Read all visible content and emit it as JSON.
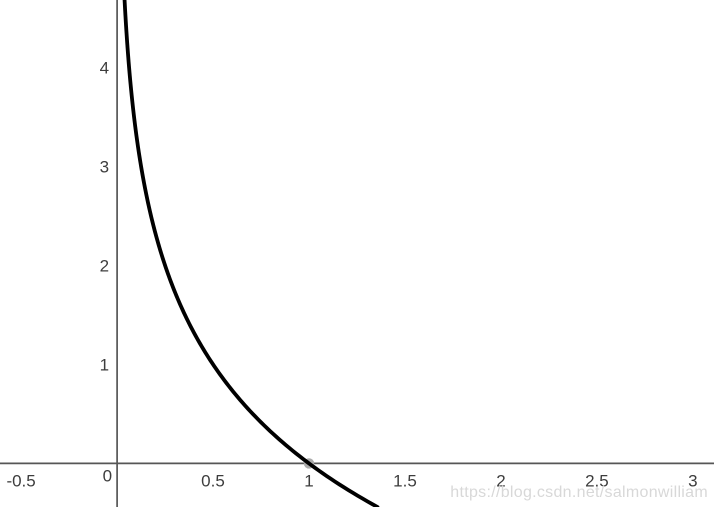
{
  "watermark": "https://blog.csdn.net/salmonwilliam",
  "colors": {
    "background": "#ffffff",
    "axis": "#565656",
    "tick_label": "#3d3d3d",
    "curve": "#000000",
    "point": "#ababab",
    "watermark": "#d8d8d8"
  },
  "chart_data": {
    "type": "line",
    "title": "",
    "xlabel": "",
    "ylabel": "",
    "expression": "y = -log2(x)",
    "function_id": "neg_log2",
    "xlim": [
      -0.61,
      3.11
    ],
    "ylim": [
      -0.44,
      4.68
    ],
    "grid": false,
    "legend_position": "none",
    "x_ticks": [
      {
        "v": -0.5,
        "label": "-0.5"
      },
      {
        "v": 0.5,
        "label": "0.5"
      },
      {
        "v": 1,
        "label": "1"
      },
      {
        "v": 1.5,
        "label": "1.5"
      },
      {
        "v": 2,
        "label": "2"
      },
      {
        "v": 2.5,
        "label": "2.5"
      },
      {
        "v": 3,
        "label": "3"
      }
    ],
    "y_ticks": [
      {
        "v": 1,
        "label": "1"
      },
      {
        "v": 2,
        "label": "2"
      },
      {
        "v": 3,
        "label": "3"
      },
      {
        "v": 4,
        "label": "4"
      }
    ],
    "origin_label": "0",
    "marked_point": {
      "x": 1,
      "y": 0
    },
    "sample_points": [
      [
        0.04,
        4.64
      ],
      [
        0.0625,
        4
      ],
      [
        0.1,
        3.32
      ],
      [
        0.125,
        3
      ],
      [
        0.2,
        2.32
      ],
      [
        0.25,
        2
      ],
      [
        0.35,
        1.51
      ],
      [
        0.5,
        1
      ],
      [
        0.7,
        0.51
      ],
      [
        1,
        0
      ],
      [
        1.2,
        -0.26
      ],
      [
        1.36,
        -0.44
      ]
    ]
  }
}
